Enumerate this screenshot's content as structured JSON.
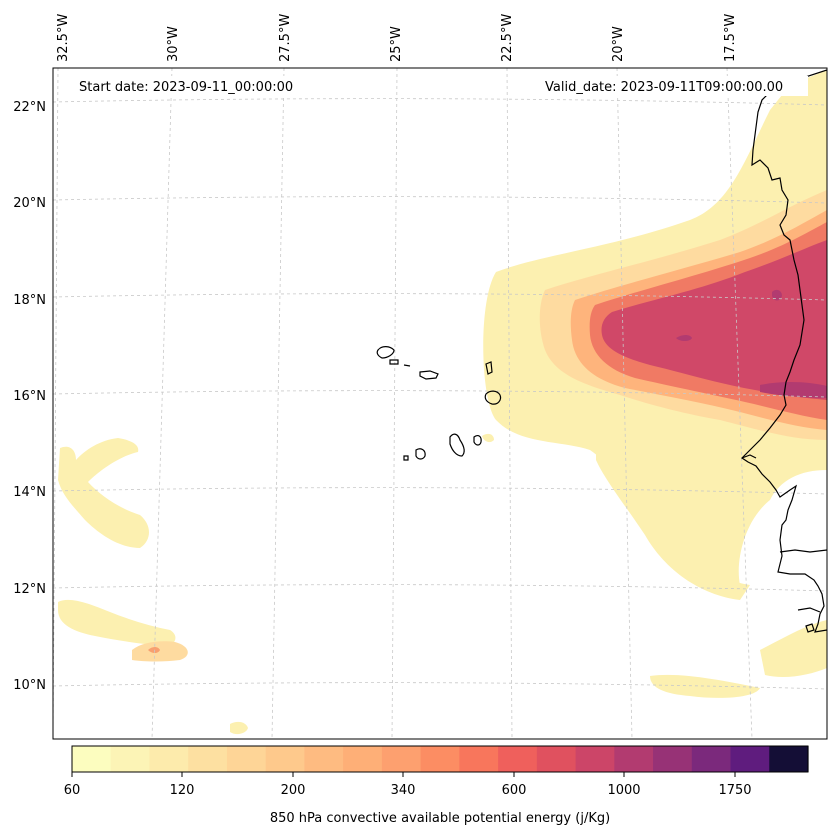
{
  "map": {
    "start_date": "Start date: 2023-09-11_00:00:00",
    "valid_date": "Valid_date: 2023-09-11T09:00:00.00",
    "lon_labels": [
      "32.5°W",
      "30°W",
      "27.5°W",
      "25°W",
      "22.5°W",
      "20°W",
      "17.5°W"
    ],
    "lat_labels": [
      "22°N",
      "20°N",
      "18°N",
      "16°N",
      "14°N",
      "12°N",
      "10°N"
    ],
    "field": "850 hPa convective available potential energy"
  },
  "colorbar": {
    "label": "850 hPa convective available potential energy (j/Kg)",
    "tick_labels": [
      "60",
      "120",
      "200",
      "340",
      "600",
      "1000",
      "1750"
    ],
    "colors": [
      "#fcfdbf",
      "#fcf4b6",
      "#fdebac",
      "#fde0a1",
      "#fed597",
      "#fec98c",
      "#febb81",
      "#feaf77",
      "#fda06f",
      "#fc8d63",
      "#f8765c",
      "#ef605c",
      "#e0515f",
      "#cc4568",
      "#b23b70",
      "#973276",
      "#7b297c",
      "#5f1c7e",
      "#140e36"
    ]
  }
}
